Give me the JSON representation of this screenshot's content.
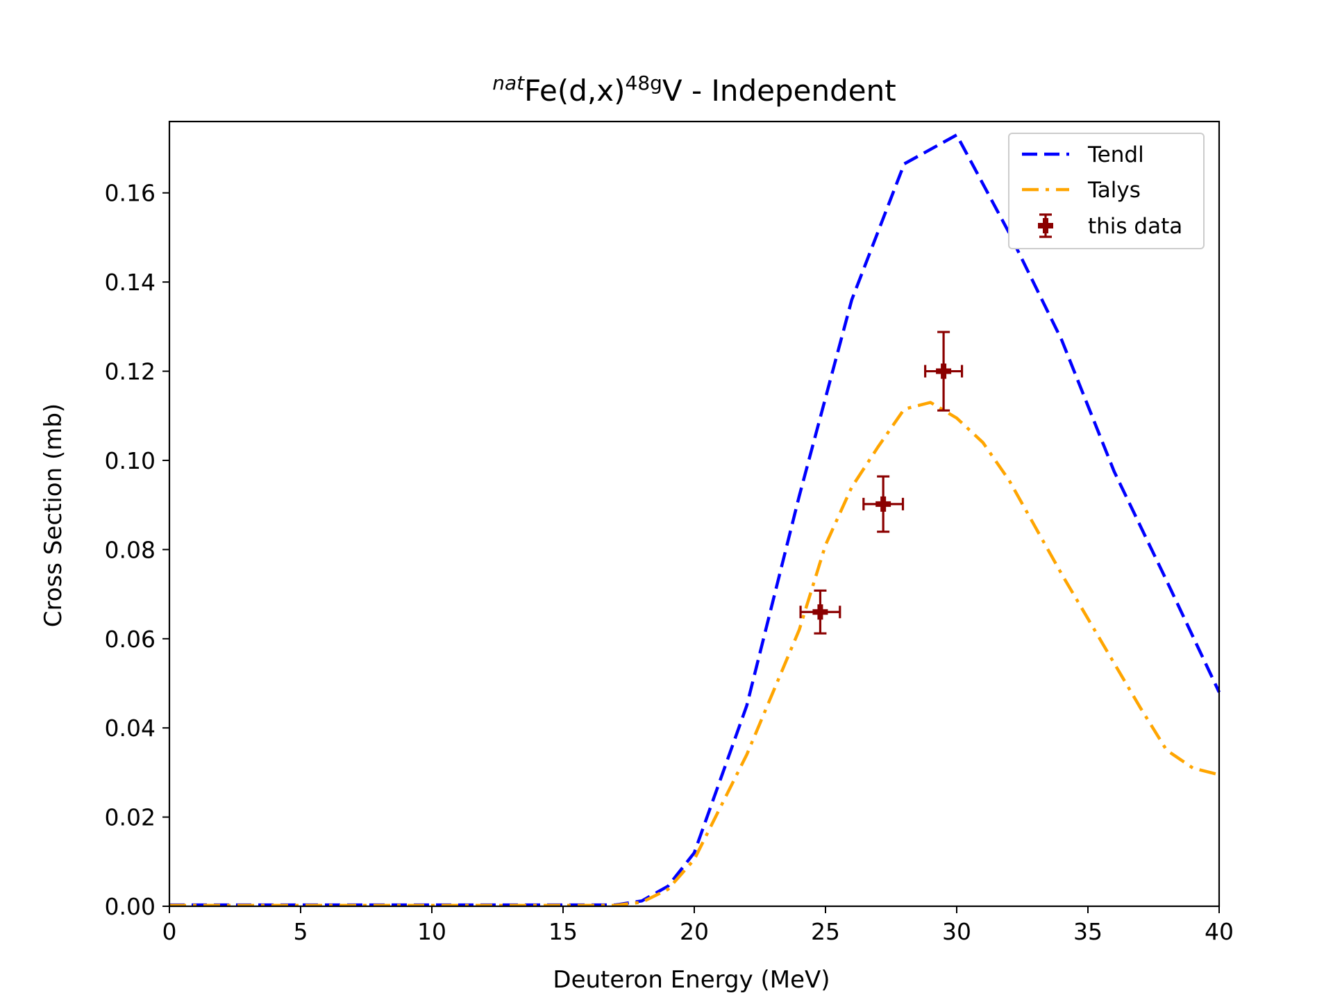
{
  "chart_data": {
    "type": "line",
    "title": {
      "prefix_sup": "nat",
      "main": "Fe(d,x)",
      "mid_sup": "48g",
      "suffix": "V - Independent"
    },
    "xlabel": "Deuteron Energy (MeV)",
    "ylabel": "Cross Section (mb)",
    "xlim": [
      0,
      40
    ],
    "ylim": [
      0,
      0.176
    ],
    "xticks": [
      0,
      5,
      10,
      15,
      20,
      25,
      30,
      35,
      40
    ],
    "xtick_labels": [
      "0",
      "5",
      "10",
      "15",
      "20",
      "25",
      "30",
      "35",
      "40"
    ],
    "yticks": [
      0.0,
      0.02,
      0.04,
      0.06,
      0.08,
      0.1,
      0.12,
      0.14,
      0.16
    ],
    "ytick_labels": [
      "0.00",
      "0.02",
      "0.04",
      "0.06",
      "0.08",
      "0.10",
      "0.12",
      "0.14",
      "0.16"
    ],
    "grid": false,
    "legend_position": "top-right",
    "series": [
      {
        "name": "Tendl",
        "style": "dashed",
        "color": "#0000ff",
        "x": [
          0,
          17,
          18,
          19,
          20,
          22,
          24,
          26,
          28,
          30,
          32,
          34,
          36,
          38,
          40
        ],
        "y": [
          0.0003,
          0.0003,
          0.0012,
          0.0045,
          0.012,
          0.045,
          0.092,
          0.136,
          0.1665,
          0.173,
          0.151,
          0.127,
          0.0975,
          0.073,
          0.048
        ]
      },
      {
        "name": "Talys",
        "style": "dashdot",
        "color": "#ffa500",
        "x": [
          0,
          17,
          18,
          19,
          20,
          22,
          24,
          25,
          26,
          27,
          28,
          29,
          30,
          31,
          32,
          33,
          34,
          35,
          36,
          37,
          38,
          39,
          40
        ],
        "y": [
          0.0002,
          0.0002,
          0.0009,
          0.0038,
          0.0105,
          0.034,
          0.062,
          0.081,
          0.094,
          0.103,
          0.1115,
          0.113,
          0.1095,
          0.104,
          0.0955,
          0.085,
          0.0745,
          0.0645,
          0.0545,
          0.0445,
          0.035,
          0.031,
          0.0295
        ]
      }
    ],
    "points": {
      "name": "this data",
      "color": "#8b0000",
      "data": [
        {
          "x": 24.8,
          "y": 0.066,
          "xerr": 0.75,
          "yerr": 0.0048
        },
        {
          "x": 27.2,
          "y": 0.0902,
          "xerr": 0.75,
          "yerr": 0.0062
        },
        {
          "x": 29.5,
          "y": 0.12,
          "xerr": 0.7,
          "yerr": 0.0088
        }
      ]
    }
  }
}
